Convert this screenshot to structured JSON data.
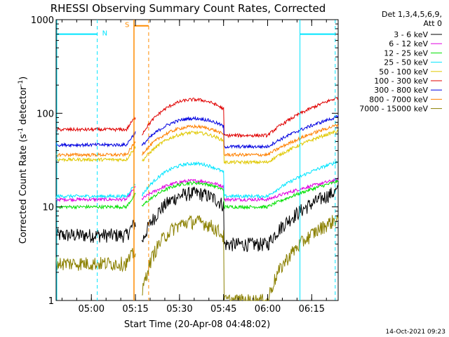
{
  "chart_data": {
    "type": "line",
    "title": "RHESSI Observing Summary Count Rates, Corrected",
    "xlabel": "Start Time (20-Apr-08 04:48:02)",
    "ylabel": "Corrected Count Rate (s-1 detector-1)",
    "ylabel_parts": {
      "pre": "Corrected Count Rate (s",
      "sup1": "-1",
      "mid": " detector",
      "sup2": "-1",
      "post": ")"
    },
    "y_scale": "log",
    "ylim": [
      1,
      1000
    ],
    "xlim_minutes": [
      288,
      384
    ],
    "x_ticks": [
      {
        "m": 300,
        "label": "05:00"
      },
      {
        "m": 315,
        "label": "05:15"
      },
      {
        "m": 330,
        "label": "05:30"
      },
      {
        "m": 345,
        "label": "05:45"
      },
      {
        "m": 360,
        "label": "06:00"
      },
      {
        "m": 375,
        "label": "06:15"
      }
    ],
    "y_ticks": [
      {
        "v": 1,
        "label": "1"
      },
      {
        "v": 10,
        "label": "10"
      },
      {
        "v": 100,
        "label": "100"
      },
      {
        "v": 1000,
        "label": "1000"
      }
    ],
    "legend": {
      "position": "right",
      "header": [
        "Det 1,3,4,5,6,9,",
        "Att 0"
      ]
    },
    "footer_timestamp": "14-Oct-2021 09:23",
    "flags": {
      "night_N": {
        "label": "N",
        "color": "#00e5ff",
        "segments": [
          [
            288,
            302
          ],
          [
            371,
            383
          ]
        ],
        "level": 700,
        "dashed_at": [
          302,
          383
        ]
      },
      "saa_S": {
        "label": "S",
        "color": "#ff8c00",
        "segments": [
          [
            314.5,
            319.5
          ]
        ],
        "level": 860,
        "solid_at": [
          314.5
        ],
        "dashed_at": [
          319.5
        ]
      }
    },
    "gap_minutes": [
      315,
      317
    ],
    "series": [
      {
        "name": "3 - 6 keV",
        "color": "#000000",
        "pre": 5.0,
        "post_min": 4.0,
        "post_max": 14.0
      },
      {
        "name": "6 - 12 keV",
        "color": "#e000e0",
        "pre": 12.0,
        "post_min": 12.0,
        "post_max": 19.0
      },
      {
        "name": "12 - 25 keV",
        "color": "#00e000",
        "pre": 10.0,
        "post_min": 10.0,
        "post_max": 18.0
      },
      {
        "name": "25 - 50 keV",
        "color": "#00e5ff",
        "pre": 13.0,
        "post_min": 13.0,
        "post_max": 29.0
      },
      {
        "name": "50 - 100 keV",
        "color": "#e0c800",
        "pre": 32.0,
        "post_min": 30.0,
        "post_max": 62.0
      },
      {
        "name": "100 - 300 keV",
        "color": "#e00000",
        "pre": 67.0,
        "post_min": 58.0,
        "post_max": 140.0
      },
      {
        "name": "300 - 800 keV",
        "color": "#0000e0",
        "pre": 46.0,
        "post_min": 44.0,
        "post_max": 88.0
      },
      {
        "name": "800 - 7000 keV",
        "color": "#ff8000",
        "pre": 36.0,
        "post_min": 36.0,
        "post_max": 72.0
      },
      {
        "name": "7000 - 15000 keV",
        "color": "#8b8000",
        "pre": 2.5,
        "post_min": 1.0,
        "post_max": 7.0
      }
    ]
  }
}
